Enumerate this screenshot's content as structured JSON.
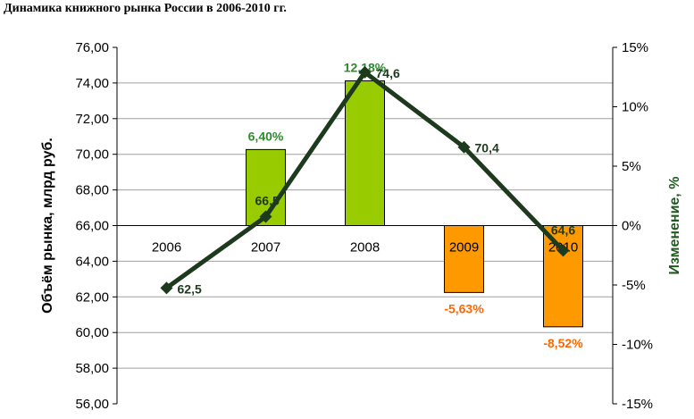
{
  "chart_data": {
    "type": "bar+line",
    "title": "Динамика книжного рынка России в 2006-2010 гг.",
    "categories": [
      "2006",
      "2007",
      "2008",
      "2009",
      "2010"
    ],
    "ylabel": "Объём рынка, млрд руб.",
    "y2label": "Изменение, %",
    "ylim": [
      56,
      76
    ],
    "y2lim": [
      -15,
      15
    ],
    "y_ticks": [
      "56,00",
      "58,00",
      "60,00",
      "62,00",
      "64,00",
      "66,00",
      "68,00",
      "70,00",
      "72,00",
      "74,00",
      "76,00"
    ],
    "y2_ticks": [
      "-15%",
      "-10%",
      "-5%",
      "0%",
      "5%",
      "10%",
      "15%"
    ],
    "grid": true,
    "series": [
      {
        "name": "Изменение, %",
        "kind": "bar",
        "axis": "right",
        "values": [
          null,
          6.4,
          12.18,
          -5.63,
          -8.52
        ],
        "labels": [
          "",
          "6,40%",
          "12,18%",
          "-5,63%",
          "-8,52%"
        ],
        "colors": [
          "#99cc00",
          "#99cc00",
          "#99cc00",
          "#ff9900",
          "#ff9900"
        ]
      },
      {
        "name": "Объём рынка, млрд руб.",
        "kind": "line",
        "axis": "left",
        "values": [
          62.5,
          66.5,
          74.6,
          70.4,
          64.6
        ],
        "labels": [
          "62,5",
          "66,5",
          "74,6",
          "70,4",
          "64,6"
        ],
        "color": "#1e3a1e"
      }
    ],
    "label_colors": {
      "positive": "#2e8b2e",
      "negative": "#ff6600"
    }
  }
}
